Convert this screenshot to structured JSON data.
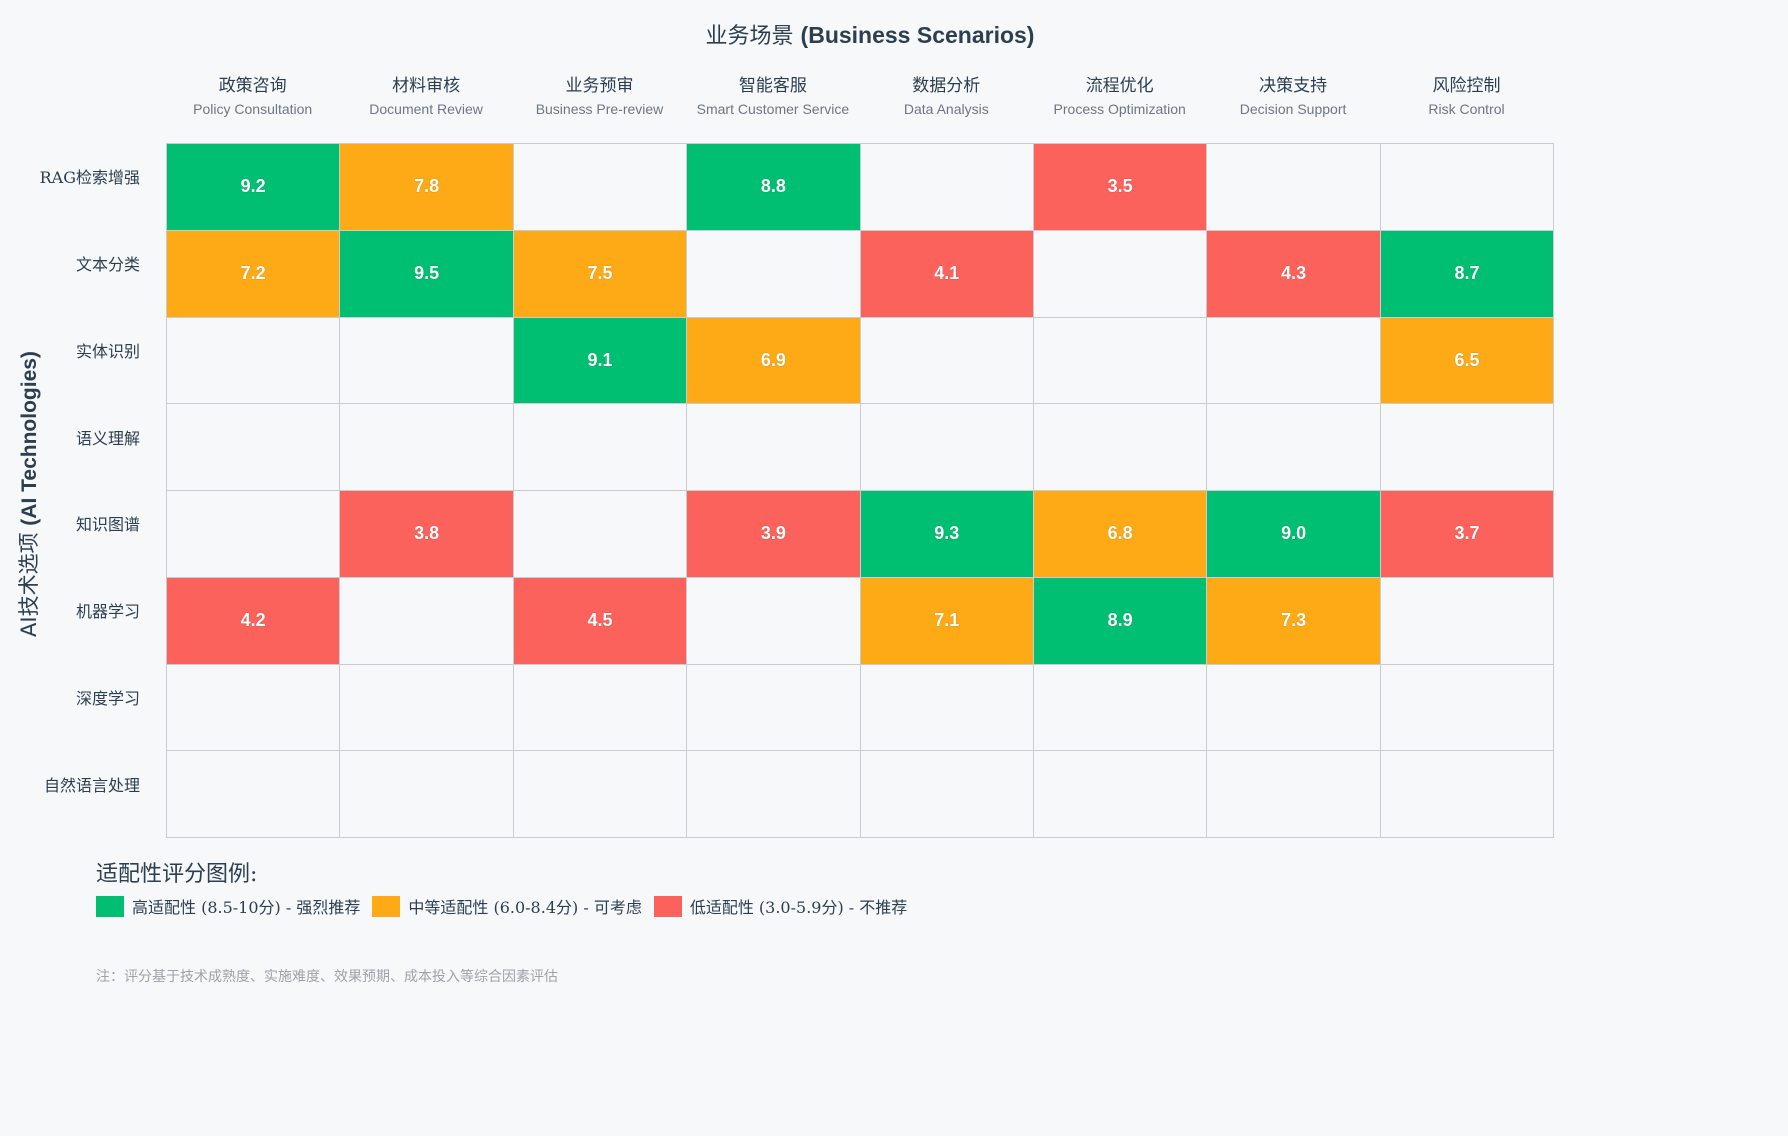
{
  "chart_data": {
    "type": "heatmap",
    "title": "业务场景 (Business Scenarios)",
    "title_zh": "业务场景",
    "title_en": "(Business Scenarios)",
    "ylabel_zh": "AI技术选项",
    "ylabel_en": "(AI Technologies)",
    "columns": [
      {
        "zh": "政策咨询",
        "en": "Policy Consultation"
      },
      {
        "zh": "材料审核",
        "en": "Document Review"
      },
      {
        "zh": "业务预审",
        "en": "Business Pre-review"
      },
      {
        "zh": "智能客服",
        "en": "Smart Customer Service"
      },
      {
        "zh": "数据分析",
        "en": "Data Analysis"
      },
      {
        "zh": "流程优化",
        "en": "Process Optimization"
      },
      {
        "zh": "决策支持",
        "en": "Decision Support"
      },
      {
        "zh": "风险控制",
        "en": "Risk Control"
      }
    ],
    "rows": [
      "RAG检索增强",
      "文本分类",
      "实体识别",
      "语义理解",
      "知识图谱",
      "机器学习",
      "深度学习",
      "自然语言处理"
    ],
    "values": [
      [
        9.2,
        7.8,
        null,
        8.8,
        null,
        3.5,
        null,
        null
      ],
      [
        7.2,
        9.5,
        7.5,
        null,
        4.1,
        null,
        4.3,
        8.7
      ],
      [
        null,
        null,
        9.1,
        6.9,
        null,
        null,
        null,
        6.5
      ],
      [
        null,
        null,
        null,
        null,
        null,
        null,
        null,
        null
      ],
      [
        null,
        3.8,
        null,
        3.9,
        9.3,
        6.8,
        9.0,
        3.7
      ],
      [
        4.2,
        null,
        4.5,
        null,
        7.1,
        8.9,
        7.3,
        null
      ],
      [
        null,
        null,
        null,
        null,
        null,
        null,
        null,
        null
      ],
      [
        null,
        null,
        null,
        null,
        null,
        null,
        null,
        null
      ]
    ],
    "color_bands": [
      {
        "min": 8.5,
        "max": 10,
        "color": "#00bf73"
      },
      {
        "min": 6.0,
        "max": 8.4,
        "color": "#fdaa16"
      },
      {
        "min": 3.0,
        "max": 5.9,
        "color": "#fc625c"
      }
    ],
    "empty_color": "#f7f8fa",
    "grid_color": "#c9cdd2"
  },
  "legend": {
    "title": "适配性评分图例:",
    "items": [
      {
        "label": "高适配性 (8.5-10分) - 强烈推荐",
        "color": "#00bf73",
        "icon": "green-swatch"
      },
      {
        "label": "中等适配性 (6.0-8.4分) - 可考虑",
        "color": "#fdaa16",
        "icon": "orange-swatch"
      },
      {
        "label": "低适配性 (3.0-5.9分) - 不推荐",
        "color": "#fc625c",
        "icon": "red-swatch"
      }
    ]
  },
  "footnote": "注：评分基于技术成熟度、实施难度、效果预期、成本投入等综合因素评估"
}
